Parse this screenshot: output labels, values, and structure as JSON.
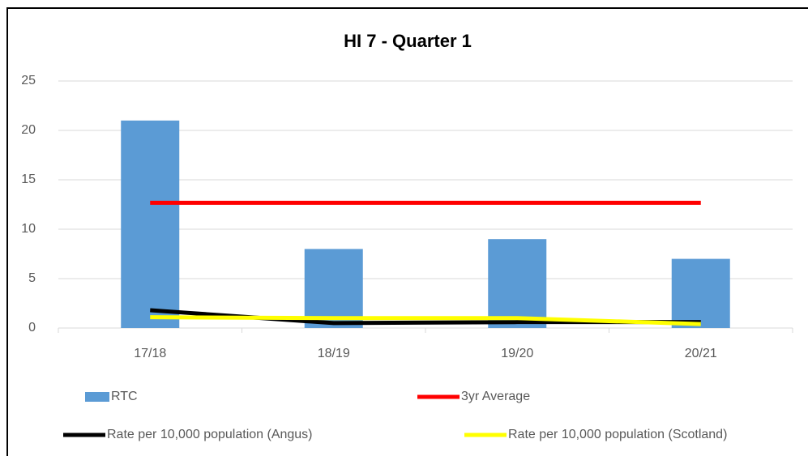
{
  "chart_data": {
    "type": "bar",
    "title": "HI 7 - Quarter 1",
    "categories": [
      "17/18",
      "18/19",
      "19/20",
      "20/21"
    ],
    "series": [
      {
        "name": "RTC",
        "type": "bar",
        "color": "#5b9bd5",
        "values": [
          21,
          8,
          9,
          7
        ]
      },
      {
        "name": "3yr Average",
        "type": "line",
        "color": "#ff0000",
        "values": [
          12.67,
          12.67,
          12.67,
          12.67
        ]
      },
      {
        "name": "Rate per 10,000 population (Angus)",
        "type": "line",
        "color": "#000000",
        "values": [
          1.8,
          0.5,
          0.6,
          0.6
        ]
      },
      {
        "name": "Rate per 10,000 population (Scotland)",
        "type": "line",
        "color": "#ffff00",
        "values": [
          1.1,
          1.0,
          1.0,
          0.4
        ]
      }
    ],
    "ylim": [
      0,
      25
    ],
    "yticks": [
      0,
      5,
      10,
      15,
      20,
      25
    ],
    "grid": true
  }
}
